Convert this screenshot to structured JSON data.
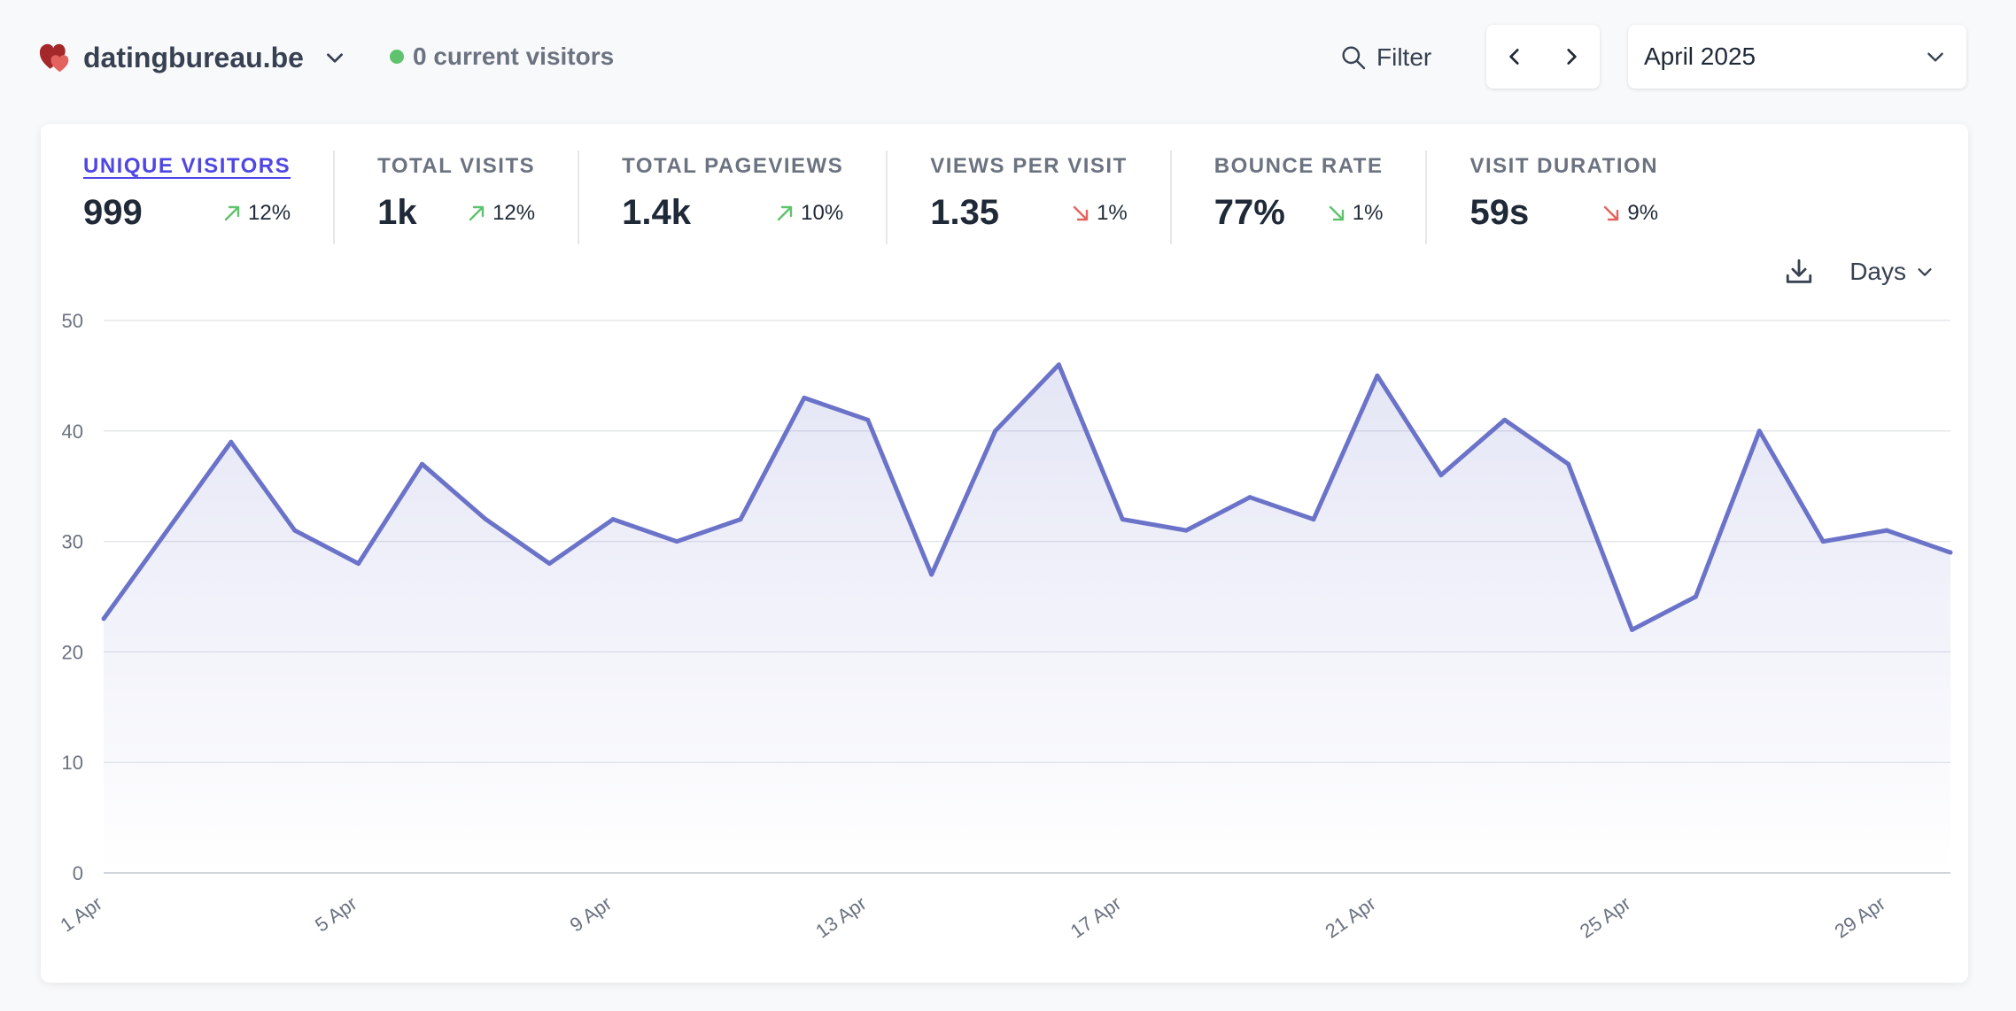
{
  "header": {
    "site_name": "datingbureau.be",
    "current_visitors": "0 current visitors",
    "filter_label": "Filter",
    "period_label": "April 2025",
    "icons": {
      "logo": "heart-logo-icon",
      "site_dropdown": "chevron-down-icon",
      "filter": "search-icon",
      "prev": "chevron-left-icon",
      "next": "chevron-right-icon",
      "period_dropdown": "chevron-down-icon"
    }
  },
  "stats": [
    {
      "label": "UNIQUE VISITORS",
      "value": "999",
      "change": "12%",
      "direction": "up",
      "active": true
    },
    {
      "label": "TOTAL VISITS",
      "value": "1k",
      "change": "12%",
      "direction": "up",
      "active": false
    },
    {
      "label": "TOTAL PAGEVIEWS",
      "value": "1.4k",
      "change": "10%",
      "direction": "up",
      "active": false
    },
    {
      "label": "VIEWS PER VISIT",
      "value": "1.35",
      "change": "1%",
      "direction": "down",
      "active": false
    },
    {
      "label": "BOUNCE RATE",
      "value": "77%",
      "change": "1%",
      "direction": "down",
      "active": false
    },
    {
      "label": "VISIT DURATION",
      "value": "59s",
      "change": "9%",
      "direction": "down",
      "active": false
    }
  ],
  "colors": {
    "up": "#5fc26d",
    "down_bad": "#e4625e",
    "down_good": "#5fc26d",
    "line": "#6b73c9",
    "accent": "#4f46e5"
  },
  "chart_tools": {
    "interval_label": "Days",
    "download_icon": "download-icon",
    "interval_icon": "chevron-down-icon"
  },
  "chart_data": {
    "type": "area",
    "x": [
      "1 Apr",
      "2 Apr",
      "3 Apr",
      "4 Apr",
      "5 Apr",
      "6 Apr",
      "7 Apr",
      "8 Apr",
      "9 Apr",
      "10 Apr",
      "11 Apr",
      "12 Apr",
      "13 Apr",
      "14 Apr",
      "15 Apr",
      "16 Apr",
      "17 Apr",
      "18 Apr",
      "19 Apr",
      "20 Apr",
      "21 Apr",
      "22 Apr",
      "23 Apr",
      "24 Apr",
      "25 Apr",
      "26 Apr",
      "27 Apr",
      "28 Apr",
      "29 Apr",
      "30 Apr"
    ],
    "x_tick_labels": [
      "1 Apr",
      "5 Apr",
      "9 Apr",
      "13 Apr",
      "17 Apr",
      "21 Apr",
      "25 Apr",
      "29 Apr"
    ],
    "series": [
      {
        "values": [
          23,
          31,
          39,
          31,
          28,
          37,
          32,
          28,
          32,
          30,
          32,
          43,
          41,
          27,
          40,
          46,
          32,
          31,
          34,
          32,
          45,
          36,
          41,
          37,
          22,
          25,
          40,
          30,
          31,
          29
        ]
      }
    ],
    "y_ticks": [
      "0",
      "10",
      "20",
      "30",
      "40",
      "50"
    ],
    "ylim": [
      0,
      50
    ],
    "grid": true,
    "legend": "none"
  }
}
